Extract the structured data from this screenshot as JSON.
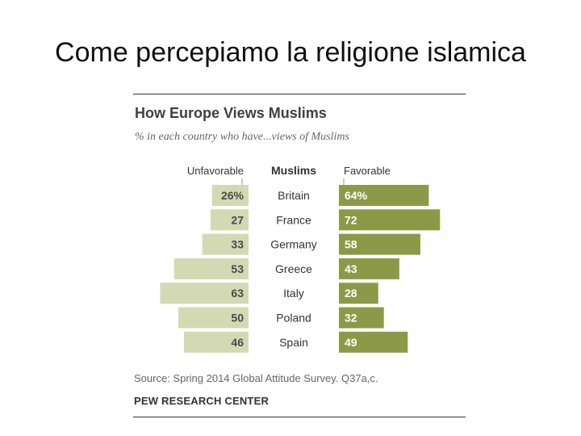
{
  "slide": {
    "title": "Come percepiamo la religione islamica"
  },
  "chart_data": {
    "type": "bar",
    "title": "How Europe Views Muslims",
    "subtitle": "% in each country who have...views of Muslims",
    "category_header": "Muslims",
    "categories": [
      "Britain",
      "France",
      "Germany",
      "Greece",
      "Italy",
      "Poland",
      "Spain"
    ],
    "series": [
      {
        "name": "Unfavorable",
        "values": [
          26,
          27,
          33,
          53,
          63,
          50,
          46
        ],
        "labels": [
          "26%",
          "27",
          "33",
          "53",
          "63",
          "50",
          "46"
        ],
        "color": "#d3d9b3"
      },
      {
        "name": "Favorable",
        "values": [
          64,
          72,
          58,
          43,
          28,
          32,
          49
        ],
        "labels": [
          "64%",
          "72",
          "58",
          "43",
          "28",
          "32",
          "49"
        ],
        "color": "#8c9a48"
      }
    ],
    "layout": "diverging",
    "source": "Source: Spring 2014 Global Attitude Survey. Q37a,c.",
    "organization": "PEW RESEARCH CENTER"
  }
}
